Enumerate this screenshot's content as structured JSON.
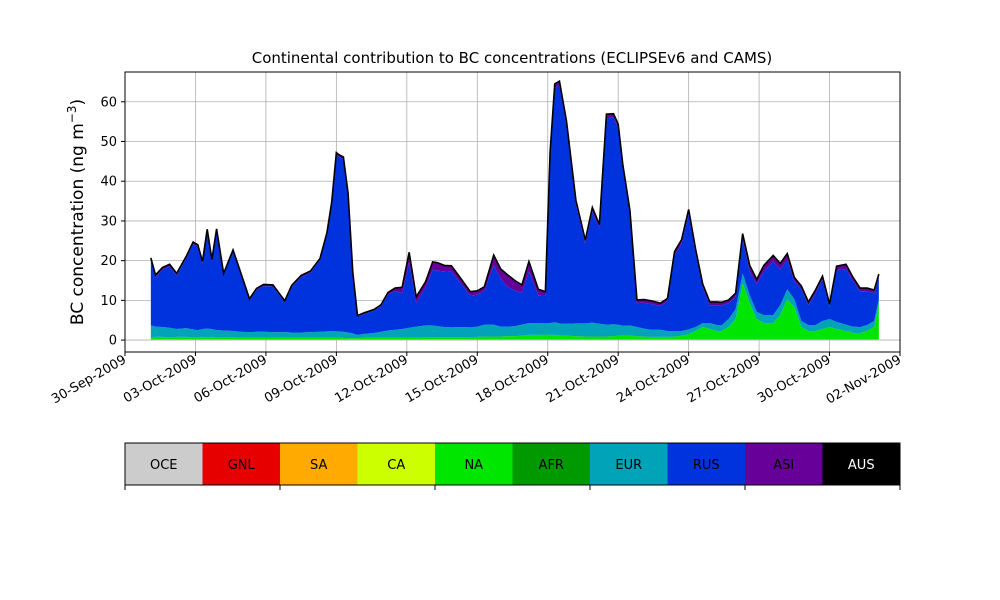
{
  "chart_data": {
    "type": "area",
    "title": "Continental contribution to BC concentrations (ECLIPSEv6 and CAMS)",
    "ylabel": "BC concentration (ng m",
    "ylabel_sup": "−3",
    "ylabel_close": ")",
    "xlabel": "",
    "grid": true,
    "ylim": [
      -3,
      67.5
    ],
    "yticks": [
      0,
      10,
      20,
      30,
      40,
      50,
      60
    ],
    "xlim_days": [
      0,
      33
    ],
    "xticks": [
      {
        "day": 0,
        "label": "30-Sep-2009"
      },
      {
        "day": 3,
        "label": "03-Oct-2009"
      },
      {
        "day": 6,
        "label": "06-Oct-2009"
      },
      {
        "day": 9,
        "label": "09-Oct-2009"
      },
      {
        "day": 12,
        "label": "12-Oct-2009"
      },
      {
        "day": 15,
        "label": "15-Oct-2009"
      },
      {
        "day": 18,
        "label": "18-Oct-2009"
      },
      {
        "day": 21,
        "label": "21-Oct-2009"
      },
      {
        "day": 24,
        "label": "24-Oct-2009"
      },
      {
        "day": 27,
        "label": "27-Oct-2009"
      },
      {
        "day": 30,
        "label": "30-Oct-2009"
      },
      {
        "day": 33,
        "label": "02-Nov-2009"
      }
    ],
    "x_days": [
      1.1,
      1.3,
      1.6,
      1.9,
      2.2,
      2.6,
      2.9,
      3.1,
      3.3,
      3.5,
      3.7,
      3.9,
      4.2,
      4.6,
      4.9,
      5.3,
      5.6,
      5.9,
      6.3,
      6.8,
      7.1,
      7.5,
      7.9,
      8.3,
      8.6,
      8.8,
      9.0,
      9.1,
      9.3,
      9.5,
      9.7,
      9.9,
      10.2,
      10.6,
      10.9,
      11.2,
      11.5,
      11.8,
      12.1,
      12.4,
      12.8,
      13.1,
      13.3,
      13.6,
      13.9,
      14.3,
      14.7,
      15.0,
      15.3,
      15.7,
      16.0,
      16.3,
      16.6,
      16.9,
      17.2,
      17.6,
      17.9,
      18.1,
      18.3,
      18.5,
      18.8,
      19.2,
      19.6,
      19.9,
      20.2,
      20.5,
      20.8,
      21.0,
      21.2,
      21.5,
      21.8,
      22.1,
      22.4,
      22.8,
      23.1,
      23.4,
      23.7,
      24.0,
      24.3,
      24.6,
      24.9,
      25.2,
      25.4,
      25.7,
      26.0,
      26.3,
      26.6,
      26.9,
      27.2,
      27.6,
      27.9,
      28.2,
      28.5,
      28.8,
      29.1,
      29.4,
      29.7,
      30.0,
      30.3,
      30.7,
      31.0,
      31.3,
      31.6,
      31.9,
      32.1
    ],
    "series": [
      {
        "name": "OCE",
        "values": [
          0.1,
          0.1,
          0.1,
          0.1,
          0.1,
          0.1,
          0.1,
          0.1,
          0.1,
          0.1,
          0.1,
          0.1,
          0.1,
          0.1,
          0.1,
          0.1,
          0.1,
          0.1,
          0.1,
          0.1,
          0.1,
          0.1,
          0.1,
          0.1,
          0.1,
          0.1,
          0.1,
          0.1,
          0.1,
          0.1,
          0.1,
          0.1,
          0.1,
          0.1,
          0.1,
          0.1,
          0.1,
          0.1,
          0.1,
          0.1,
          0.1,
          0.1,
          0.1,
          0.1,
          0.1,
          0.1,
          0.1,
          0.1,
          0.1,
          0.1,
          0.1,
          0.1,
          0.1,
          0.1,
          0.1,
          0.1,
          0.1,
          0.1,
          0.1,
          0.1,
          0.1,
          0.1,
          0.1,
          0.1,
          0.1,
          0.1,
          0.1,
          0.1,
          0.1,
          0.1,
          0.1,
          0.1,
          0.1,
          0.1,
          0.1,
          0.1,
          0.1,
          0.1,
          0.1,
          0.1,
          0.1,
          0.1,
          0.1,
          0.1,
          0.1,
          0.1,
          0.1,
          0.1,
          0.1,
          0.1,
          0.1,
          0.1,
          0.1,
          0.1,
          0.1,
          0.1,
          0.1,
          0.1,
          0.1,
          0.1,
          0.1,
          0.1,
          0.1,
          0.1,
          0.1
        ]
      },
      {
        "name": "GNL",
        "values": [
          0.05,
          0.05,
          0.05,
          0.05,
          0.05,
          0.05,
          0.05,
          0.05,
          0.05,
          0.05,
          0.05,
          0.05,
          0.05,
          0.05,
          0.05,
          0.05,
          0.05,
          0.05,
          0.05,
          0.05,
          0.05,
          0.05,
          0.05,
          0.05,
          0.05,
          0.05,
          0.05,
          0.05,
          0.05,
          0.05,
          0.05,
          0.05,
          0.05,
          0.05,
          0.05,
          0.05,
          0.05,
          0.05,
          0.05,
          0.05,
          0.05,
          0.05,
          0.05,
          0.05,
          0.05,
          0.05,
          0.05,
          0.05,
          0.05,
          0.05,
          0.05,
          0.05,
          0.05,
          0.05,
          0.05,
          0.05,
          0.05,
          0.05,
          0.05,
          0.05,
          0.05,
          0.05,
          0.05,
          0.05,
          0.05,
          0.05,
          0.05,
          0.05,
          0.05,
          0.05,
          0.05,
          0.05,
          0.05,
          0.05,
          0.05,
          0.05,
          0.05,
          0.05,
          0.05,
          0.05,
          0.05,
          0.05,
          0.05,
          0.05,
          0.05,
          0.05,
          0.05,
          0.05,
          0.05,
          0.05,
          0.05,
          0.05,
          0.05,
          0.05,
          0.05,
          0.05,
          0.05,
          0.05,
          0.05,
          0.05,
          0.05,
          0.05,
          0.05,
          0.05,
          0.05
        ]
      },
      {
        "name": "SA",
        "values": [
          0,
          0,
          0,
          0,
          0,
          0,
          0,
          0,
          0,
          0,
          0,
          0,
          0,
          0,
          0,
          0,
          0,
          0,
          0,
          0,
          0,
          0,
          0,
          0,
          0,
          0,
          0,
          0,
          0,
          0,
          0,
          0,
          0,
          0,
          0,
          0,
          0,
          0,
          0,
          0,
          0,
          0,
          0,
          0,
          0,
          0,
          0,
          0,
          0,
          0,
          0,
          0,
          0,
          0,
          0,
          0,
          0,
          0,
          0,
          0,
          0,
          0,
          0,
          0,
          0,
          0,
          0,
          0,
          0,
          0,
          0,
          0,
          0,
          0,
          0,
          0,
          0,
          0,
          0,
          0,
          0,
          0,
          0,
          0,
          0,
          0,
          0,
          0,
          0,
          0,
          0,
          0,
          0,
          0,
          0,
          0,
          0,
          0,
          0,
          0,
          0,
          0,
          0,
          0,
          0
        ]
      },
      {
        "name": "CA",
        "values": [
          0.1,
          0.1,
          0.1,
          0.1,
          0.1,
          0.1,
          0.1,
          0.1,
          0.1,
          0.1,
          0.1,
          0.1,
          0.1,
          0.1,
          0.1,
          0.1,
          0.1,
          0.1,
          0.1,
          0.1,
          0.1,
          0.1,
          0.1,
          0.1,
          0.1,
          0.1,
          0.1,
          0.1,
          0.1,
          0.1,
          0.1,
          0.1,
          0.1,
          0.1,
          0.1,
          0.1,
          0.1,
          0.1,
          0.1,
          0.1,
          0.1,
          0.1,
          0.1,
          0.1,
          0.1,
          0.1,
          0.1,
          0.1,
          0.1,
          0.1,
          0.1,
          0.1,
          0.1,
          0.1,
          0.1,
          0.1,
          0.1,
          0.1,
          0.1,
          0.1,
          0.1,
          0.1,
          0.1,
          0.1,
          0.1,
          0.1,
          0.1,
          0.1,
          0.1,
          0.1,
          0.1,
          0.1,
          0.1,
          0.1,
          0.1,
          0.1,
          0.1,
          0.1,
          0.1,
          0.1,
          0.1,
          0.1,
          0.1,
          0.1,
          0.1,
          0.1,
          0.1,
          0.1,
          0.1,
          0.1,
          0.1,
          0.1,
          0.1,
          0.1,
          0.1,
          0.1,
          0.1,
          0.1,
          0.1,
          0.1,
          0.1,
          0.1,
          0.1,
          0.1,
          0.1
        ]
      },
      {
        "name": "NA",
        "values": [
          0.4,
          0.5,
          0.5,
          0.4,
          0.5,
          0.5,
          0.4,
          0.4,
          0.5,
          0.4,
          0.5,
          0.4,
          0.4,
          0.4,
          0.3,
          0.3,
          0.3,
          0.3,
          0.3,
          0.3,
          0.3,
          0.3,
          0.3,
          0.3,
          0.3,
          0.3,
          0.3,
          0.3,
          0.3,
          0.2,
          0.2,
          0.2,
          0.3,
          0.3,
          0.3,
          0.3,
          0.3,
          0.3,
          0.3,
          0.3,
          0.4,
          0.4,
          0.4,
          0.4,
          0.4,
          0.4,
          0.4,
          0.5,
          0.6,
          0.6,
          0.6,
          0.7,
          0.7,
          0.8,
          1.0,
          1.0,
          1.1,
          1.0,
          1.0,
          0.9,
          0.8,
          0.7,
          0.6,
          0.6,
          0.6,
          0.6,
          0.7,
          0.8,
          0.8,
          0.8,
          0.7,
          0.6,
          0.5,
          0.5,
          0.5,
          0.6,
          0.8,
          1.2,
          2.0,
          3.0,
          2.5,
          2.0,
          2.0,
          3.0,
          5.0,
          14.0,
          9.0,
          5.0,
          4.0,
          4.0,
          6.0,
          10.0,
          8.0,
          3.0,
          2.0,
          2.0,
          2.5,
          3.0,
          2.5,
          2.0,
          1.5,
          1.5,
          2.0,
          3.0,
          9.0
        ]
      },
      {
        "name": "AFR",
        "values": [
          0.05,
          0.05,
          0.05,
          0.05,
          0.05,
          0.05,
          0.05,
          0.05,
          0.05,
          0.05,
          0.05,
          0.05,
          0.05,
          0.05,
          0.05,
          0.05,
          0.05,
          0.05,
          0.05,
          0.05,
          0.05,
          0.05,
          0.05,
          0.05,
          0.05,
          0.05,
          0.05,
          0.05,
          0.05,
          0.05,
          0.05,
          0.05,
          0.05,
          0.05,
          0.05,
          0.05,
          0.05,
          0.05,
          0.05,
          0.05,
          0.05,
          0.05,
          0.05,
          0.05,
          0.05,
          0.05,
          0.05,
          0.05,
          0.05,
          0.05,
          0.05,
          0.05,
          0.05,
          0.05,
          0.05,
          0.05,
          0.05,
          0.05,
          0.05,
          0.05,
          0.05,
          0.05,
          0.05,
          0.05,
          0.05,
          0.05,
          0.05,
          0.05,
          0.05,
          0.05,
          0.05,
          0.05,
          0.05,
          0.05,
          0.05,
          0.05,
          0.05,
          0.05,
          0.05,
          0.05,
          0.05,
          0.05,
          0.05,
          0.05,
          0.05,
          0.05,
          0.05,
          0.05,
          0.05,
          0.05,
          0.05,
          0.05,
          0.05,
          0.05,
          0.05,
          0.05,
          0.05,
          0.05,
          0.05,
          0.05,
          0.05,
          0.05,
          0.05,
          0.05,
          0.05
        ]
      },
      {
        "name": "EUR",
        "values": [
          3.0,
          2.6,
          2.5,
          2.4,
          2.0,
          2.2,
          2.0,
          1.8,
          2.0,
          2.2,
          2.0,
          1.8,
          1.7,
          1.6,
          1.5,
          1.4,
          1.5,
          1.5,
          1.4,
          1.4,
          1.3,
          1.3,
          1.4,
          1.5,
          1.6,
          1.7,
          1.6,
          1.6,
          1.5,
          1.4,
          1.2,
          0.8,
          1.0,
          1.2,
          1.5,
          1.8,
          2.0,
          2.2,
          2.5,
          2.8,
          3.0,
          3.0,
          2.8,
          2.6,
          2.5,
          2.6,
          2.5,
          2.6,
          3.0,
          3.0,
          2.5,
          2.4,
          2.5,
          2.8,
          3.0,
          3.0,
          2.8,
          3.0,
          3.2,
          3.0,
          3.0,
          3.2,
          3.3,
          3.5,
          3.2,
          3.0,
          3.0,
          2.8,
          2.5,
          2.6,
          2.3,
          2.0,
          1.8,
          1.8,
          1.5,
          1.4,
          1.2,
          1.2,
          1.0,
          1.0,
          1.5,
          1.5,
          1.4,
          2.0,
          2.5,
          2.5,
          2.0,
          1.8,
          2.0,
          2.0,
          2.5,
          2.5,
          2.0,
          1.5,
          1.5,
          1.5,
          2.0,
          2.0,
          1.8,
          1.6,
          1.6,
          1.5,
          1.5,
          1.5,
          1.0
        ]
      },
      {
        "name": "RUS",
        "values": [
          16.5,
          12.5,
          14.5,
          15.5,
          13.5,
          17.5,
          21.5,
          21.0,
          16.5,
          24.5,
          17.0,
          25.0,
          14.0,
          20.0,
          15.0,
          8.0,
          10.5,
          11.5,
          11.5,
          7.5,
          11.5,
          14.0,
          15.0,
          18.0,
          24.5,
          32.0,
          44.5,
          44.0,
          43.5,
          34.5,
          15.0,
          4.7,
          5.0,
          5.6,
          6.4,
          9.1,
          9.7,
          9.0,
          16.5,
          6.0,
          9.5,
          14.0,
          14.0,
          14.0,
          14.0,
          11.0,
          8.0,
          8.0,
          8.5,
          15.0,
          12.0,
          10.0,
          9.0,
          8.0,
          13.0,
          7.0,
          7.0,
          42.0,
          59.0,
          60.0,
          50.0,
          30.0,
          20.0,
          28.0,
          24.0,
          52.0,
          52.0,
          49.5,
          39.5,
          28.0,
          6.0,
          6.5,
          6.5,
          6.0,
          7.5,
          19.0,
          22.0,
          29.0,
          18.5,
          9.0,
          4.5,
          5.0,
          5.0,
          4.0,
          3.0,
          8.5,
          6.0,
          7.0,
          11.0,
          13.5,
          9.0,
          7.5,
          4.5,
          8.0,
          5.0,
          8.0,
          10.5,
          3.0,
          13.0,
          14.0,
          11.5,
          9.0,
          8.5,
          7.0,
          5.5
        ]
      },
      {
        "name": "ASI",
        "values": [
          0.5,
          0.5,
          0.5,
          0.5,
          0.5,
          0.5,
          0.5,
          0.5,
          0.5,
          0.5,
          0.5,
          0.5,
          0.4,
          0.4,
          0.4,
          0.4,
          0.4,
          0.4,
          0.4,
          0.4,
          0.4,
          0.4,
          0.4,
          0.4,
          0.4,
          0.4,
          0.5,
          0.5,
          0.5,
          0.5,
          0.4,
          0.2,
          0.3,
          0.3,
          0.4,
          0.5,
          0.8,
          1.5,
          2.5,
          1.5,
          1.5,
          2.0,
          2.0,
          1.5,
          1.5,
          1.2,
          1.0,
          1.0,
          1.0,
          2.5,
          2.5,
          3.0,
          2.5,
          2.0,
          2.5,
          1.5,
          1.0,
          1.0,
          1.0,
          1.0,
          1.0,
          1.0,
          1.0,
          1.0,
          1.0,
          1.0,
          1.0,
          1.0,
          1.0,
          1.0,
          0.8,
          0.8,
          0.8,
          0.7,
          0.7,
          1.0,
          1.0,
          1.2,
          1.0,
          0.8,
          0.8,
          0.8,
          0.8,
          0.8,
          1.0,
          1.5,
          1.5,
          1.2,
          1.5,
          1.5,
          1.5,
          1.5,
          1.0,
          0.8,
          0.8,
          0.8,
          0.8,
          0.8,
          1.0,
          1.2,
          0.9,
          0.8,
          0.8,
          0.8,
          0.8
        ]
      },
      {
        "name": "AUS",
        "values": [
          0,
          0,
          0,
          0,
          0,
          0,
          0,
          0,
          0,
          0,
          0,
          0,
          0,
          0,
          0,
          0,
          0,
          0,
          0,
          0,
          0,
          0,
          0,
          0,
          0,
          0,
          0,
          0,
          0,
          0,
          0,
          0,
          0,
          0,
          0,
          0,
          0,
          0,
          0,
          0,
          0,
          0,
          0,
          0,
          0,
          0,
          0,
          0,
          0,
          0,
          0,
          0,
          0,
          0,
          0,
          0,
          0,
          0,
          0,
          0,
          0,
          0,
          0,
          0,
          0,
          0,
          0,
          0,
          0,
          0,
          0,
          0,
          0,
          0,
          0,
          0,
          0,
          0,
          0,
          0,
          0,
          0,
          0,
          0,
          0,
          0,
          0,
          0,
          0,
          0,
          0,
          0,
          0,
          0,
          0,
          0,
          0,
          0,
          0,
          0,
          0,
          0,
          0,
          0,
          0
        ]
      }
    ],
    "legend": {
      "placement": "bottom",
      "entries": [
        "OCE",
        "GNL",
        "SA",
        "CA",
        "NA",
        "AFR",
        "EUR",
        "RUS",
        "ASI",
        "AUS"
      ],
      "colors": [
        "#cccccc",
        "#e60000",
        "#ffaa00",
        "#ccff00",
        "#00e600",
        "#009900",
        "#00a3b8",
        "#0033dd",
        "#660099",
        "#000000"
      ],
      "text_colors": [
        "#000000",
        "#000000",
        "#000000",
        "#000000",
        "#000000",
        "#000000",
        "#000000",
        "#000000",
        "#000000",
        "#ffffff"
      ]
    }
  }
}
